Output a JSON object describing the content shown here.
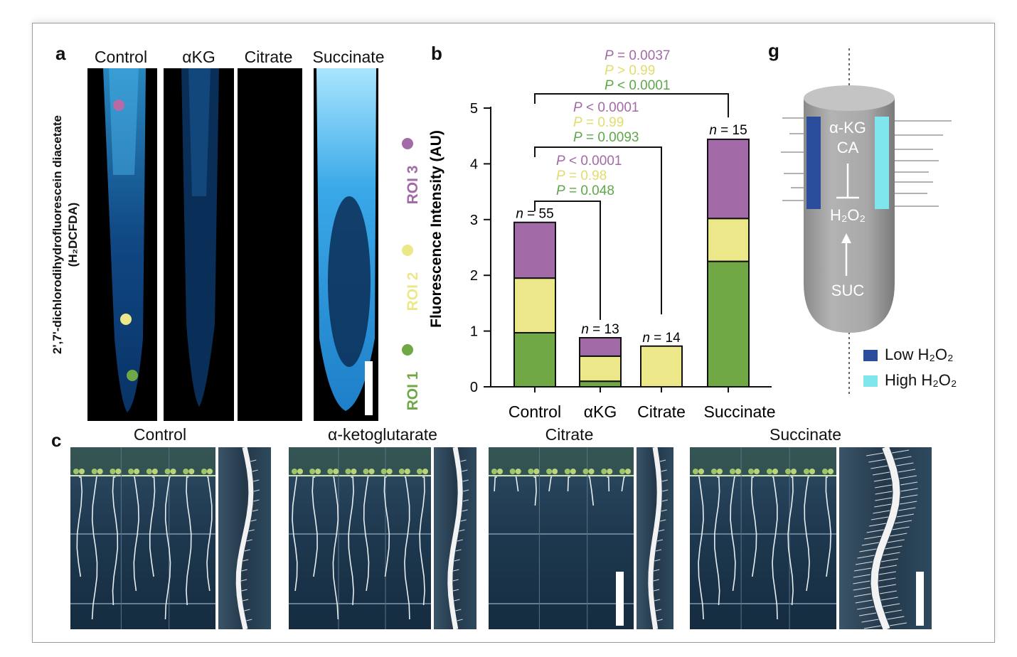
{
  "panel_labels": {
    "a": "a",
    "b": "b",
    "c": "c",
    "g": "g"
  },
  "panel_a": {
    "columns": [
      "Control",
      "αKG",
      "Citrate",
      "Succinate"
    ],
    "stain_name": "2',7'-dichlorodihydrofluorescein diacetate",
    "stain_abbrev": "(H₂DCFDA)"
  },
  "panel_b": {
    "roi_labels": [
      "ROI 1",
      "ROI 2",
      "ROI 3"
    ],
    "n_labels": [
      "n = 55",
      "n = 13",
      "n = 14",
      "n = 15"
    ],
    "pvalues": [
      {
        "roi3": "P = 0.0037",
        "roi2": "P > 0.99",
        "roi1": "P < 0.0001"
      },
      {
        "roi3": "P < 0.0001",
        "roi2": "P = 0.99",
        "roi1": "P = 0.0093"
      },
      {
        "roi3": "P < 0.0001",
        "roi2": "P = 0.98",
        "roi1": "P = 0.048"
      }
    ]
  },
  "chart_data": {
    "type": "bar",
    "stacked": true,
    "categories": [
      "Control",
      "αKG",
      "Citrate",
      "Succinate"
    ],
    "series": [
      {
        "name": "ROI 1",
        "color": "#70a845",
        "values": [
          0.97,
          0.1,
          0.0,
          2.25
        ]
      },
      {
        "name": "ROI 2",
        "color": "#ece88a",
        "values": [
          0.98,
          0.45,
          0.73,
          0.77
        ]
      },
      {
        "name": "ROI 3",
        "color": "#a26aa6",
        "values": [
          1.0,
          0.33,
          0.0,
          1.42
        ]
      }
    ],
    "ylabel": "Fluorescence Intensity (AU)",
    "ylim": [
      0,
      5
    ],
    "yticks": [
      0,
      1,
      2,
      3,
      4,
      5
    ],
    "legend_position": "left, vertical"
  },
  "panel_c": {
    "titles": [
      "Control",
      "α-ketoglutarate",
      "Citrate",
      "Succinate"
    ]
  },
  "panel_g": {
    "top_label_1": "α-KG",
    "top_label_2": "CA",
    "h2o2": "H₂O₂",
    "suc": "SUC",
    "legend": [
      {
        "label": "Low H₂O₂",
        "color": "#2a4d9c"
      },
      {
        "label": "High H₂O₂",
        "color": "#7ee6ec"
      }
    ]
  },
  "colors": {
    "roi1": "#70a845",
    "roi2": "#ece88a",
    "roi3": "#a26aa6",
    "pval_green": "#5ea84a",
    "pval_yellow": "#e2dc6e",
    "pval_purple": "#a26aa6"
  }
}
